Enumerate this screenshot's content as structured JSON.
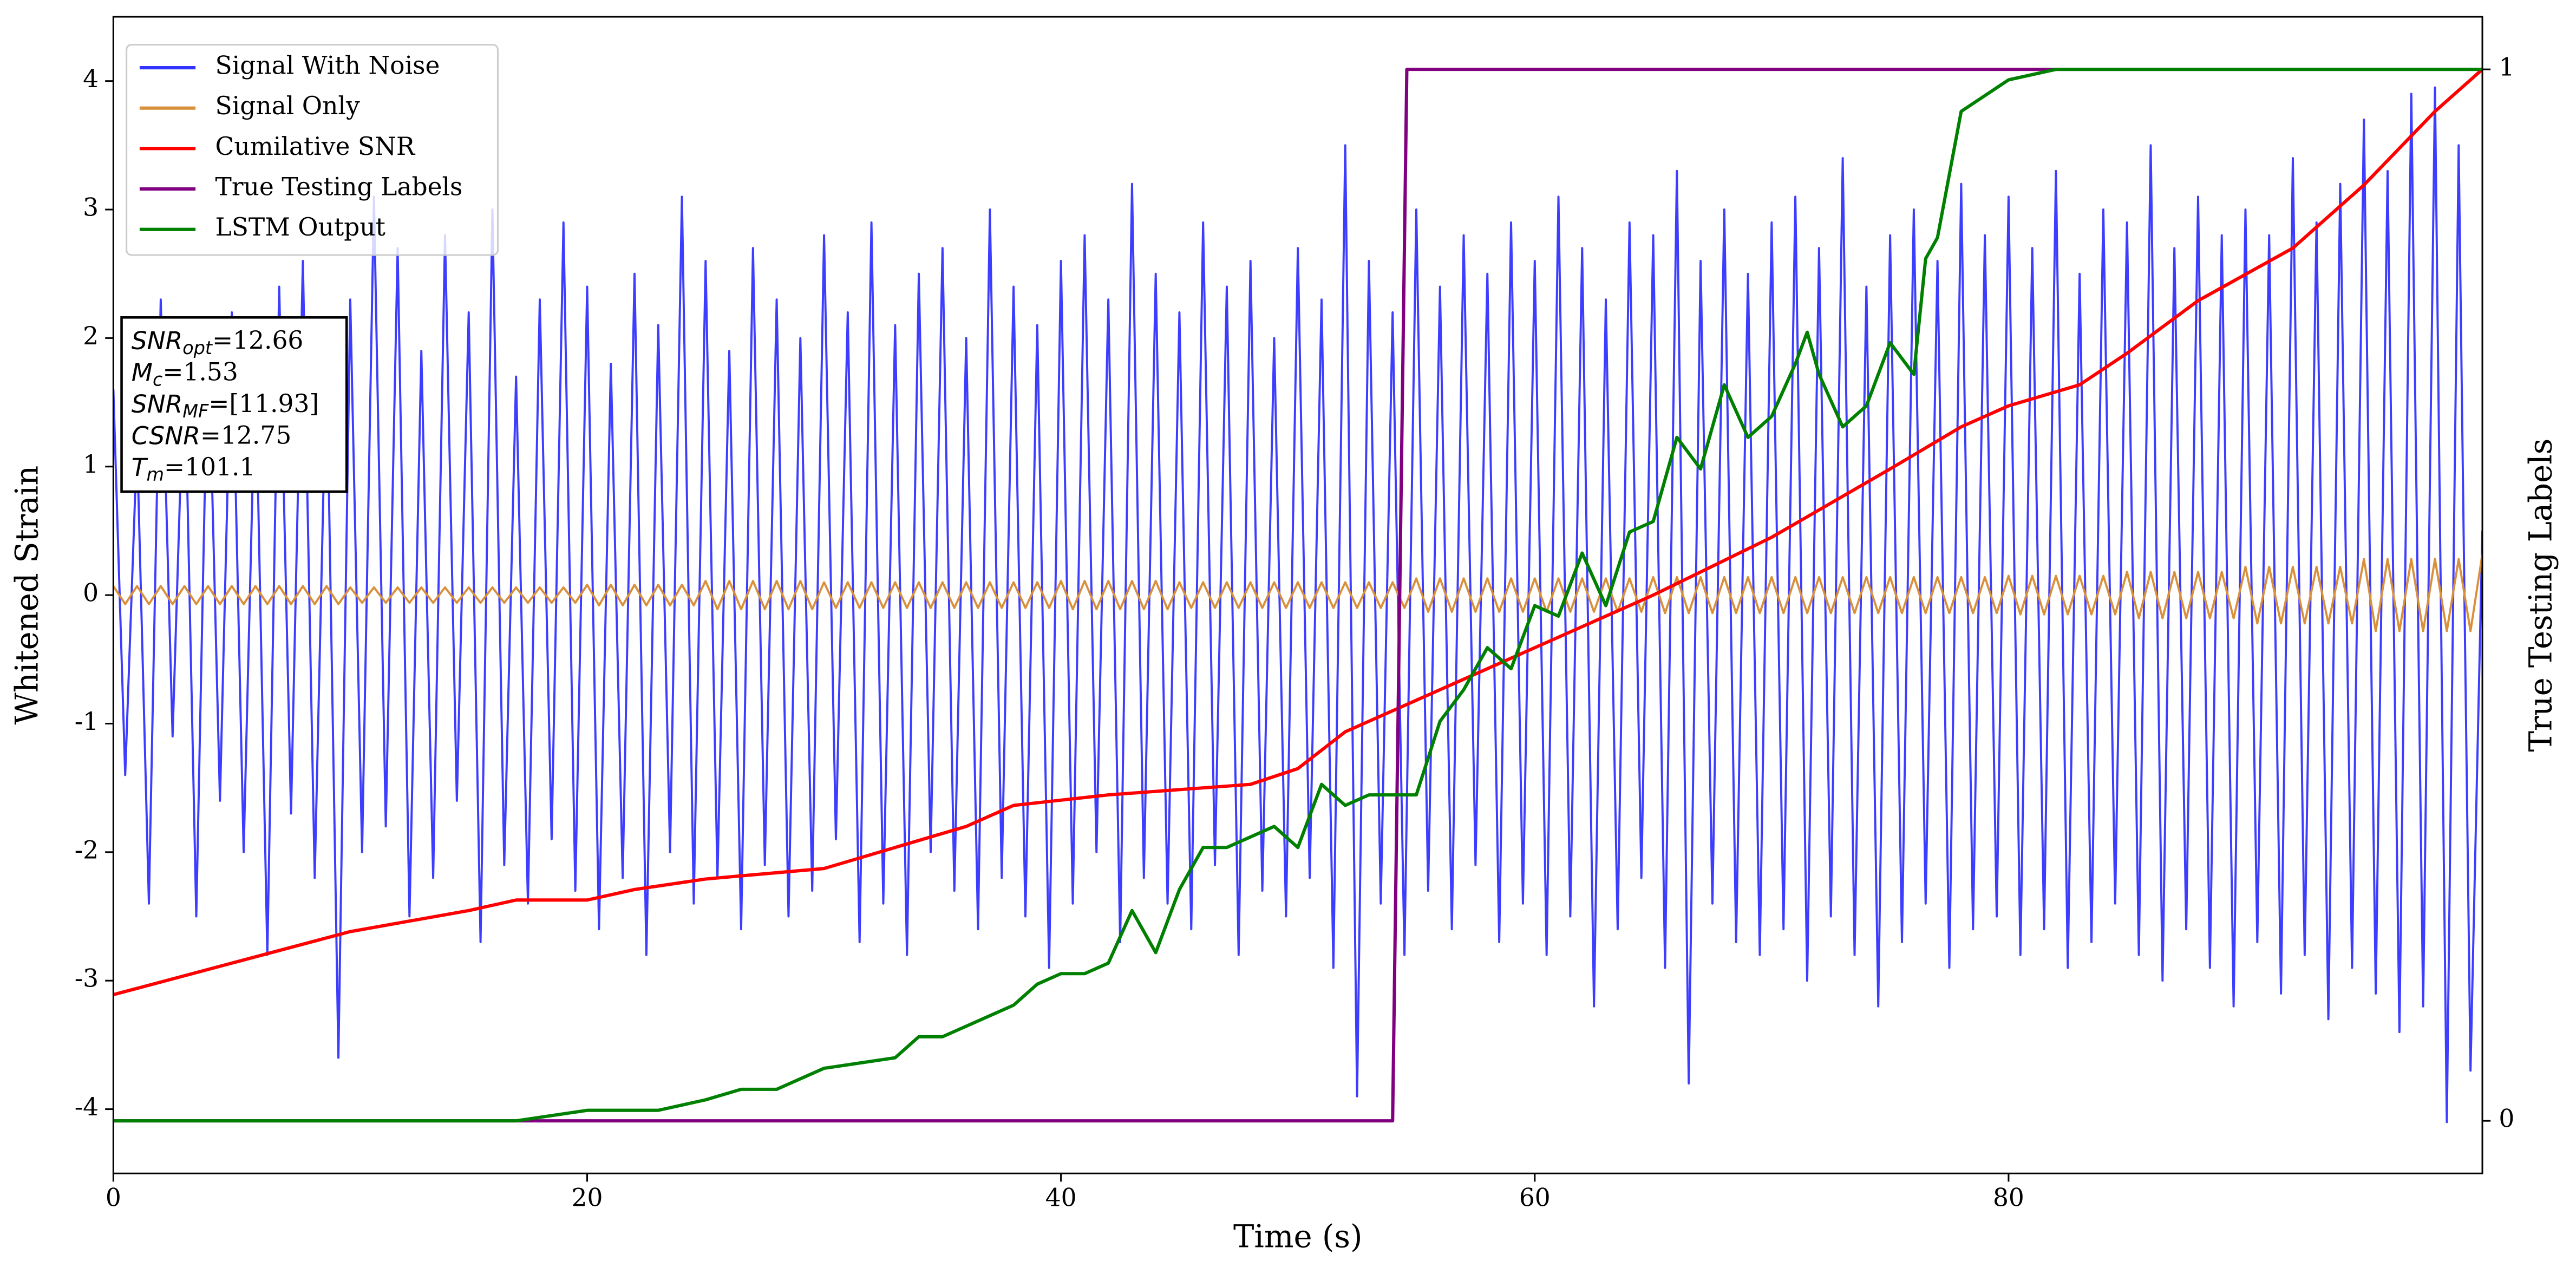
{
  "chart_data": {
    "type": "line",
    "xlabel": "Time (s)",
    "ylabel": "Whitened Strain",
    "y2label": "True Testing Labels",
    "xlim": [
      0,
      100
    ],
    "ylim": [
      -4.5,
      4.5
    ],
    "y2lim": [
      -0.05,
      1.05
    ],
    "xticks": [
      0,
      20,
      40,
      60,
      80
    ],
    "yticks": [
      -4,
      -3,
      -2,
      -1,
      0,
      1,
      2,
      3,
      4
    ],
    "y2ticks": [
      0,
      1
    ],
    "legend": "upper left",
    "x": [
      0,
      0.5,
      1,
      1.5,
      2,
      2.5,
      3,
      3.5,
      4,
      4.5,
      5,
      5.5,
      6,
      6.5,
      7,
      7.5,
      8,
      8.5,
      9,
      9.5,
      10,
      10.5,
      11,
      11.5,
      12,
      12.5,
      13,
      13.5,
      14,
      14.5,
      15,
      15.5,
      16,
      16.5,
      17,
      17.5,
      18,
      18.5,
      19,
      19.5,
      20,
      20.5,
      21,
      21.5,
      22,
      22.5,
      23,
      23.5,
      24,
      24.5,
      25,
      25.5,
      26,
      26.5,
      27,
      27.5,
      28,
      28.5,
      29,
      29.5,
      30,
      30.5,
      31,
      31.5,
      32,
      32.5,
      33,
      33.5,
      34,
      34.5,
      35,
      35.5,
      36,
      36.5,
      37,
      37.5,
      38,
      38.5,
      39,
      39.5,
      40,
      40.5,
      41,
      41.5,
      42,
      42.5,
      43,
      43.5,
      44,
      44.5,
      45,
      45.5,
      46,
      46.5,
      47,
      47.5,
      48,
      48.5,
      49,
      49.5,
      50,
      50.5,
      51,
      51.5,
      52,
      52.5,
      53,
      53.5,
      54,
      54.5,
      55,
      55.5,
      56,
      56.5,
      57,
      57.5,
      58,
      58.5,
      59,
      59.5,
      60,
      60.5,
      61,
      61.5,
      62,
      62.5,
      63,
      63.5,
      64,
      64.5,
      65,
      65.5,
      66,
      66.5,
      67,
      67.5,
      68,
      68.5,
      69,
      69.5,
      70,
      70.5,
      71,
      71.5,
      72,
      72.5,
      73,
      73.5,
      74,
      74.5,
      75,
      75.5,
      76,
      76.5,
      77,
      77.5,
      78,
      78.5,
      79,
      79.5,
      80,
      80.5,
      81,
      81.5,
      82,
      82.5,
      83,
      83.5,
      84,
      84.5,
      85,
      85.5,
      86,
      86.5,
      87,
      87.5,
      88,
      88.5,
      89,
      89.5,
      90,
      90.5,
      91,
      91.5,
      92,
      92.5,
      93,
      93.5,
      94,
      94.5,
      95,
      95.5,
      96,
      96.5,
      97,
      97.5,
      98,
      98.5,
      99,
      99.5,
      100
    ],
    "series": [
      {
        "name": "Signal With Noise",
        "color": "#3333ff",
        "axis": "y",
        "values": [
          1.6,
          -1.4,
          1.2,
          -2.4,
          2.3,
          -1.1,
          1.9,
          -2.5,
          2.1,
          -1.6,
          2.2,
          -2.0,
          1.8,
          -2.8,
          2.4,
          -1.7,
          2.6,
          -2.2,
          1.9,
          -3.6,
          2.3,
          -2.0,
          3.1,
          -1.8,
          2.7,
          -2.5,
          1.9,
          -2.2,
          2.8,
          -1.6,
          2.2,
          -2.7,
          3.0,
          -2.1,
          1.7,
          -2.4,
          2.3,
          -1.9,
          2.9,
          -2.3,
          2.4,
          -2.6,
          1.8,
          -2.2,
          2.5,
          -2.8,
          2.1,
          -2.0,
          3.1,
          -2.4,
          2.6,
          -2.2,
          1.9,
          -2.6,
          2.7,
          -2.1,
          2.3,
          -2.5,
          2.0,
          -2.3,
          2.8,
          -1.9,
          2.2,
          -2.7,
          2.9,
          -2.4,
          2.1,
          -2.8,
          2.5,
          -2.0,
          2.7,
          -2.3,
          2.0,
          -2.6,
          3.0,
          -2.2,
          2.4,
          -2.5,
          2.1,
          -2.9,
          2.6,
          -2.4,
          2.8,
          -2.0,
          2.3,
          -2.7,
          3.2,
          -2.2,
          2.5,
          -2.4,
          2.2,
          -2.6,
          2.9,
          -2.1,
          2.4,
          -2.8,
          2.6,
          -2.3,
          2.0,
          -2.5,
          2.7,
          -2.2,
          2.3,
          -2.9,
          3.5,
          -3.9,
          2.6,
          -2.4,
          2.2,
          -2.8,
          3.0,
          -2.3,
          2.4,
          -2.6,
          2.8,
          -2.1,
          2.5,
          -2.7,
          2.9,
          -2.4,
          2.6,
          -2.8,
          3.1,
          -2.5,
          2.7,
          -3.2,
          2.3,
          -2.6,
          2.9,
          -2.2,
          2.8,
          -2.9,
          3.3,
          -3.8,
          2.6,
          -2.4,
          3.0,
          -2.7,
          2.5,
          -2.8,
          2.9,
          -2.6,
          3.1,
          -3.0,
          2.7,
          -2.5,
          3.4,
          -2.8,
          2.4,
          -3.2,
          2.8,
          -2.7,
          3.0,
          -2.4,
          2.6,
          -2.9,
          3.2,
          -2.6,
          2.8,
          -2.5,
          3.1,
          -2.8,
          2.7,
          -2.6,
          3.3,
          -2.9,
          2.5,
          -2.7,
          3.0,
          -2.4,
          2.9,
          -2.8,
          3.5,
          -3.0,
          2.7,
          -2.6,
          3.1,
          -2.9,
          2.8,
          -3.2,
          3.0,
          -2.7,
          2.8,
          -3.1,
          3.4,
          -2.8,
          2.9,
          -3.3,
          3.2,
          -2.9,
          3.7,
          -3.1,
          3.3,
          -3.4,
          3.9,
          -3.2,
          3.95,
          -4.1,
          3.5,
          -3.7,
          0.5
        ]
      },
      {
        "name": "Signal Only",
        "color": "#d9903a",
        "axis": "y",
        "values": [
          0.07,
          -0.07,
          0.07,
          -0.07,
          0.07,
          -0.07,
          0.07,
          -0.07,
          0.07,
          -0.07,
          0.07,
          -0.07,
          0.07,
          -0.07,
          0.07,
          -0.07,
          0.07,
          -0.07,
          0.07,
          -0.07,
          0.06,
          -0.06,
          0.06,
          -0.06,
          0.06,
          -0.06,
          0.06,
          -0.06,
          0.06,
          -0.06,
          0.06,
          -0.06,
          0.06,
          -0.06,
          0.06,
          -0.06,
          0.06,
          -0.06,
          0.06,
          -0.06,
          0.08,
          -0.08,
          0.08,
          -0.08,
          0.08,
          -0.08,
          0.08,
          -0.08,
          0.08,
          -0.08,
          0.11,
          -0.11,
          0.11,
          -0.11,
          0.11,
          -0.11,
          0.11,
          -0.11,
          0.11,
          -0.11,
          0.1,
          -0.1,
          0.1,
          -0.1,
          0.1,
          -0.1,
          0.1,
          -0.1,
          0.1,
          -0.1,
          0.1,
          -0.1,
          0.1,
          -0.1,
          0.1,
          -0.1,
          0.1,
          -0.1,
          0.1,
          -0.1,
          0.11,
          -0.11,
          0.11,
          -0.11,
          0.11,
          -0.11,
          0.11,
          -0.11,
          0.11,
          -0.11,
          0.1,
          -0.1,
          0.1,
          -0.1,
          0.1,
          -0.1,
          0.1,
          -0.1,
          0.1,
          -0.1,
          0.1,
          -0.1,
          0.1,
          -0.1,
          0.1,
          -0.1,
          0.1,
          -0.1,
          0.1,
          -0.1,
          0.13,
          -0.13,
          0.13,
          -0.13,
          0.13,
          -0.13,
          0.13,
          -0.13,
          0.13,
          -0.13,
          0.13,
          -0.13,
          0.13,
          -0.13,
          0.13,
          -0.13,
          0.13,
          -0.13,
          0.13,
          -0.13,
          0.14,
          -0.14,
          0.14,
          -0.14,
          0.14,
          -0.14,
          0.14,
          -0.14,
          0.14,
          -0.14,
          0.14,
          -0.14,
          0.14,
          -0.14,
          0.14,
          -0.14,
          0.14,
          -0.14,
          0.14,
          -0.14,
          0.14,
          -0.14,
          0.14,
          -0.14,
          0.14,
          -0.14,
          0.14,
          -0.14,
          0.14,
          -0.14,
          0.15,
          -0.15,
          0.15,
          -0.15,
          0.15,
          -0.15,
          0.15,
          -0.15,
          0.15,
          -0.15,
          0.18,
          -0.18,
          0.18,
          -0.18,
          0.18,
          -0.18,
          0.18,
          -0.18,
          0.18,
          -0.18,
          0.22,
          -0.22,
          0.22,
          -0.22,
          0.22,
          -0.22,
          0.22,
          -0.22,
          0.22,
          -0.22,
          0.28,
          -0.28,
          0.28,
          -0.28,
          0.28,
          -0.28,
          0.28,
          -0.28,
          0.28,
          -0.28,
          0.32
        ]
      },
      {
        "name": "Cumilative SNR",
        "color": "#ff0000",
        "axis": "y2",
        "x": [
          0,
          5,
          10,
          15,
          17,
          20,
          22,
          25,
          30,
          33,
          36,
          38,
          42,
          45,
          48,
          50,
          52,
          55,
          58,
          60,
          65,
          70,
          75,
          78,
          80,
          83,
          85,
          88,
          90,
          92,
          95,
          98,
          100
        ],
        "values": [
          0.12,
          0.15,
          0.18,
          0.2,
          0.21,
          0.21,
          0.22,
          0.23,
          0.24,
          0.26,
          0.28,
          0.3,
          0.31,
          0.315,
          0.32,
          0.335,
          0.37,
          0.4,
          0.43,
          0.45,
          0.5,
          0.555,
          0.62,
          0.66,
          0.68,
          0.7,
          0.73,
          0.78,
          0.805,
          0.83,
          0.89,
          0.96,
          1.0
        ]
      },
      {
        "name": "True Testing Labels",
        "color": "#800080",
        "axis": "y2",
        "x": [
          0,
          54,
          54.6,
          100
        ],
        "values": [
          0,
          0,
          1,
          1
        ]
      },
      {
        "name": "LSTM Output",
        "color": "#008000",
        "axis": "y2",
        "x": [
          0,
          17,
          20,
          23,
          25,
          26.5,
          28,
          30,
          33,
          34,
          35,
          36,
          37,
          38,
          39,
          40,
          41,
          42,
          43,
          44,
          45,
          46,
          47,
          48,
          49,
          50,
          51,
          52,
          53,
          54,
          55,
          56,
          57,
          58,
          59,
          60,
          61,
          62,
          63,
          64,
          65,
          66,
          67,
          68,
          69,
          70,
          71,
          71.5,
          72,
          73,
          74,
          75,
          76,
          76.5,
          77,
          78,
          80,
          82,
          100
        ],
        "values": [
          0,
          0,
          0.01,
          0.01,
          0.02,
          0.03,
          0.03,
          0.05,
          0.06,
          0.08,
          0.08,
          0.09,
          0.1,
          0.11,
          0.13,
          0.14,
          0.14,
          0.15,
          0.2,
          0.16,
          0.22,
          0.26,
          0.26,
          0.27,
          0.28,
          0.26,
          0.32,
          0.3,
          0.31,
          0.31,
          0.31,
          0.38,
          0.41,
          0.45,
          0.43,
          0.49,
          0.48,
          0.54,
          0.49,
          0.56,
          0.57,
          0.65,
          0.62,
          0.7,
          0.65,
          0.67,
          0.72,
          0.75,
          0.71,
          0.66,
          0.68,
          0.74,
          0.71,
          0.82,
          0.84,
          0.96,
          0.99,
          1.0,
          1.0
        ]
      }
    ],
    "annotations": [
      {
        "main": "SNR",
        "sub": "opt",
        "rest": "=12.66"
      },
      {
        "main": "M",
        "sub": "c",
        "rest": "=1.53"
      },
      {
        "main": "SNR",
        "sub": "MF",
        "rest": "=[11.93]"
      },
      {
        "main": "CSNR",
        "sub": "",
        "rest": "=12.75"
      },
      {
        "main": "T",
        "sub": "m",
        "rest": "=101.1"
      }
    ]
  }
}
